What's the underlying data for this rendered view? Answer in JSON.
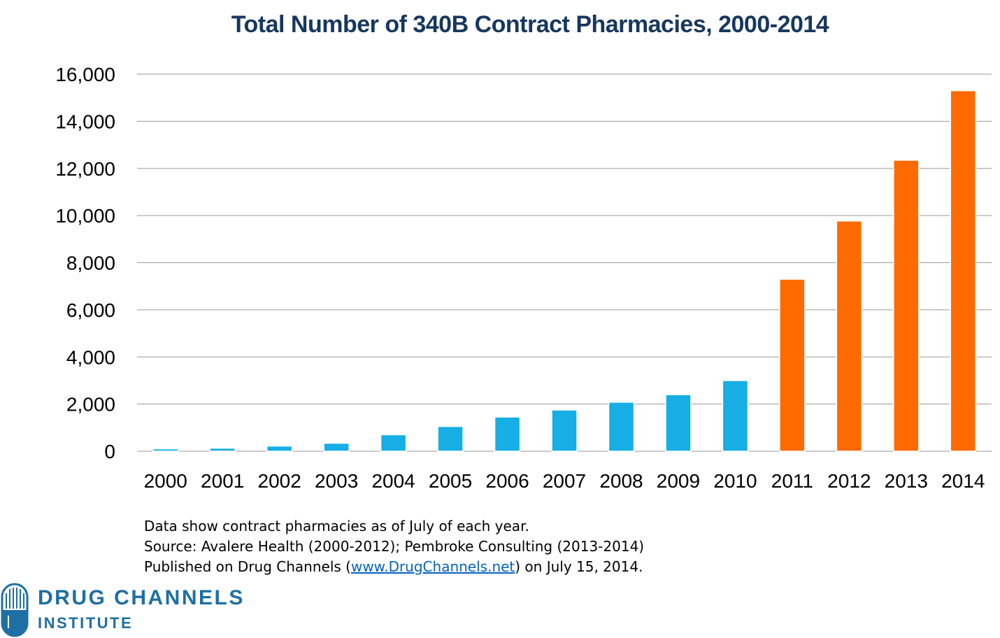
{
  "chart_data": {
    "type": "bar",
    "title": "Total Number of 340B Contract Pharmacies, 2000-2014",
    "categories": [
      "2000",
      "2001",
      "2002",
      "2003",
      "2004",
      "2005",
      "2006",
      "2007",
      "2008",
      "2009",
      "2010",
      "2011",
      "2012",
      "2013",
      "2014"
    ],
    "values": [
      100,
      130,
      220,
      340,
      700,
      1050,
      1450,
      1750,
      2080,
      2400,
      3000,
      7300,
      9770,
      12350,
      15300
    ],
    "bar_colors": [
      "#16aee5",
      "#16aee5",
      "#16aee5",
      "#16aee5",
      "#16aee5",
      "#16aee5",
      "#16aee5",
      "#16aee5",
      "#16aee5",
      "#16aee5",
      "#16aee5",
      "#ff6a00",
      "#ff6a00",
      "#ff6a00",
      "#ff6a00"
    ],
    "yticks": [
      0,
      2000,
      4000,
      6000,
      8000,
      10000,
      12000,
      14000,
      16000
    ],
    "ytick_labels": [
      "0",
      "2,000",
      "4,000",
      "6,000",
      "8,000",
      "10,000",
      "12,000",
      "14,000",
      "16,000"
    ],
    "ylim": [
      0,
      16000
    ],
    "xlabel": "",
    "ylabel": "",
    "grid": true,
    "gridline_color": "#9a9a9a"
  },
  "notes": {
    "line1": "Data show contract pharmacies as of July of each year.",
    "line2": "Source: Avalere Health (2000-2012); Pembroke Consulting (2013-2014)",
    "line3_prefix": "Published on Drug Channels (",
    "line3_link": "www.DrugChannels.net",
    "line3_suffix": ") on July 15, 2014."
  },
  "logo": {
    "line1": "DRUG CHANNELS",
    "line2": "INSTITUTE",
    "color": "#1e6fa3"
  }
}
